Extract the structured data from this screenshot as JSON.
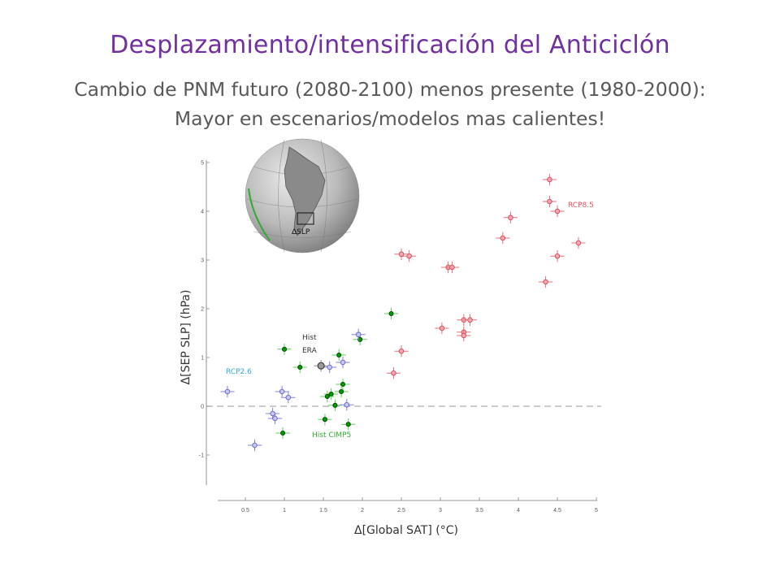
{
  "slide": {
    "title": "Desplazamiento/intensificación del Anticiclón",
    "subtitle_line1": "Cambio de PNM futuro (2080-2100) menos presente (1980-2000):",
    "subtitle_line2": "Mayor en escenarios/modelos mas calientes!"
  },
  "inset": {
    "label": "ΔSLP"
  },
  "colors": {
    "title": "#7030A0",
    "rcp85": "#E8707A",
    "rcp26": "#8080E0",
    "hist": "#009900",
    "era": "#555555"
  },
  "chart_data": {
    "type": "scatter",
    "xlabel": "Δ[Global SAT]  (°C)",
    "ylabel": "Δ[SEP SLP]  (hPa)",
    "xlim": [
      0,
      5
    ],
    "ylim": [
      -1.6,
      5.1
    ],
    "xticks": [
      "0.5",
      "1",
      "1.5",
      "2",
      "2.5",
      "3",
      "3.5",
      "4",
      "4.5",
      "5"
    ],
    "yticks": [
      "5",
      "4",
      "3",
      "2",
      "1",
      "0",
      "-1"
    ],
    "reference_line": 0,
    "series": [
      {
        "name": "RCP8.5",
        "color": "#E8707A",
        "points": [
          [
            4.4,
            4.65
          ],
          [
            4.4,
            4.2
          ],
          [
            4.5,
            4.0
          ],
          [
            3.9,
            3.87
          ],
          [
            3.8,
            3.45
          ],
          [
            4.77,
            3.35
          ],
          [
            2.5,
            3.12
          ],
          [
            2.6,
            3.08
          ],
          [
            4.5,
            3.08
          ],
          [
            3.1,
            2.85
          ],
          [
            3.15,
            2.85
          ],
          [
            4.35,
            2.55
          ],
          [
            3.3,
            1.77
          ],
          [
            3.38,
            1.77
          ],
          [
            3.02,
            1.6
          ],
          [
            3.3,
            1.52
          ],
          [
            3.3,
            1.45
          ],
          [
            2.5,
            1.13
          ],
          [
            2.4,
            0.68
          ]
        ]
      },
      {
        "name": "Hist CIMP5",
        "color": "#009900",
        "points": [
          [
            2.37,
            1.9
          ],
          [
            1.0,
            1.17
          ],
          [
            1.97,
            1.37
          ],
          [
            1.2,
            0.8
          ],
          [
            1.7,
            1.05
          ],
          [
            1.75,
            0.45
          ],
          [
            1.73,
            0.3
          ],
          [
            1.6,
            0.25
          ],
          [
            1.55,
            0.2
          ],
          [
            1.65,
            0.02
          ],
          [
            1.52,
            -0.27
          ],
          [
            1.82,
            -0.37
          ],
          [
            0.98,
            -0.55
          ]
        ]
      },
      {
        "name": "RCP2.6",
        "color": "#8080E0",
        "points": [
          [
            0.27,
            0.3
          ],
          [
            0.97,
            0.3
          ],
          [
            1.05,
            0.18
          ],
          [
            1.95,
            1.47
          ],
          [
            1.75,
            0.9
          ],
          [
            1.58,
            0.8
          ],
          [
            1.8,
            0.03
          ],
          [
            0.85,
            -0.15
          ],
          [
            0.88,
            -0.25
          ],
          [
            0.62,
            -0.8
          ]
        ]
      },
      {
        "name": "Hist ERA",
        "color": "#555555",
        "points": [
          [
            1.47,
            0.83
          ]
        ]
      }
    ],
    "annotations": [
      "RCP8.5",
      "RCP2.6",
      "Hist",
      "ERA",
      "Hist CIMP5"
    ]
  }
}
